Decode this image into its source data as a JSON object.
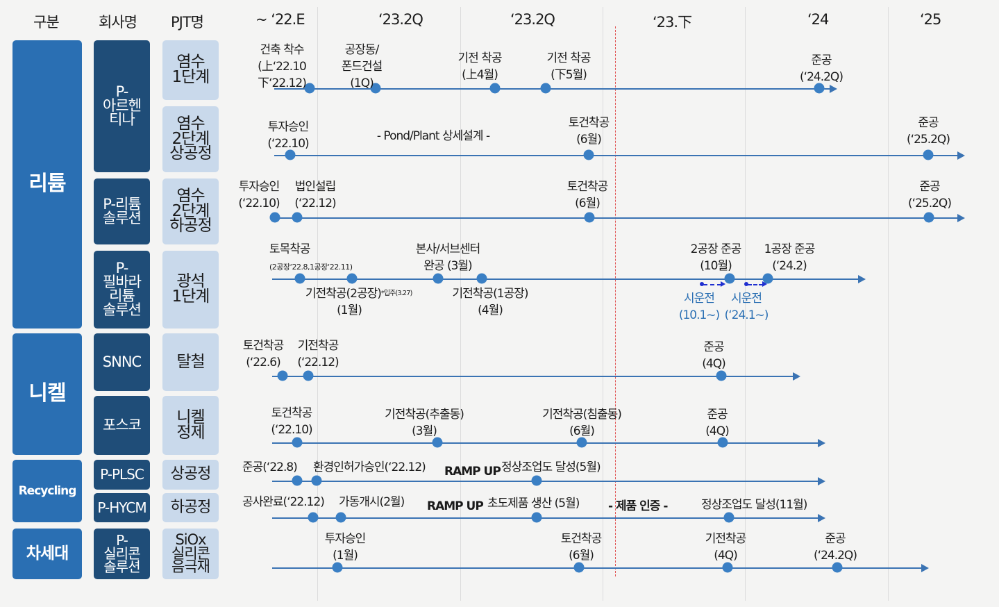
{
  "headers": {
    "category": "구분",
    "company": "회사명",
    "project": "PJT명",
    "t1": "~ ‘22.E",
    "t2": "‘23.2Q",
    "t3": "‘23.2Q",
    "t4": "‘23.下",
    "t5": "‘24",
    "t6": "‘25"
  },
  "categories": {
    "lithium": "리튬",
    "nickel": "니켈",
    "recycling": "Recycling",
    "nextgen": "차세대"
  },
  "companies": {
    "arg": "P-\n아르헨\n티나",
    "ls": "P-리튬\n솔루션",
    "pilbara": "P-\n필바라\n리튬\n솔루션",
    "snnc": "SNNC",
    "posco": "포스코",
    "plsc": "P-PLSC",
    "hycm": "P-HYCM",
    "silicon": "P-\n실리콘\n솔루션"
  },
  "projects": {
    "brine1": "염수\n1단계",
    "brine2u": "염수\n2단계\n상공정",
    "brine2d": "염수\n2단계\n하공정",
    "ore": "광석\n1단계",
    "ferro": "탈철",
    "nirefine": "니켈\n정제",
    "upper": "상공정",
    "lower": "하공정",
    "siox": "SiOx\n실리콘\n음극재"
  },
  "r1": {
    "m1": "건축 착수\n(上‘22.10\n下‘22.12)",
    "m2": "공장동/\n폰드건설\n(1Q)",
    "m3": "기전 착공\n(上4월)",
    "m4": "기전 착공\n(下5월)",
    "m5": "준공\n(‘24.2Q)"
  },
  "r2": {
    "m1": "투자승인\n(‘22.10)",
    "mid": "- Pond/Plant 상세설계 -",
    "m2": "토건착공\n(6월)",
    "m3": "준공\n(‘25.2Q)"
  },
  "r3": {
    "m1": "투자승인\n(‘22.10)",
    "m2": "법인설립\n(‘22.12)",
    "m3": "토건착공\n(6월)",
    "m4": "준공\n(‘25.2Q)"
  },
  "r4": {
    "m1": "토목착공",
    "m1s": "(2공장‘22.8,1공장‘22.11)",
    "m2": "본사/서브센터\n완공 (3월)",
    "m3": "2공장 준공\n(10월)",
    "m4": "1공장 준공\n(‘24.2)",
    "b1": "기전착공(2공장)",
    "b1sup": "*입주(3.27)",
    "b1b": "(1월)",
    "b2": "기전착공(1공장)\n(4월)",
    "t1": "시운전\n(10.1~)",
    "t2": "시운전\n(‘24.1~)"
  },
  "r5": {
    "m1": "토건착공\n(‘22.6)",
    "m2": "기전착공\n(‘22.12)",
    "m3": "준공\n(4Q)"
  },
  "r6": {
    "m1": "토건착공\n(‘22.10)",
    "m2": "기전착공(추출동)\n(3월)",
    "m3": "기전착공(침출동)\n(6월)",
    "m4": "준공\n(4Q)"
  },
  "r7": {
    "m1": "준공(‘22.8)",
    "m2": "환경인허가승인(‘22.12)",
    "ramp": "RAMP UP",
    "m3": "정상조업도 달성(5월)"
  },
  "r8": {
    "m1": "공사완료(‘22.12)",
    "m2": "가동개시(2월)",
    "ramp": "RAMP UP",
    "m3": "초도제품 생산 (5월)",
    "cert": "- 제품 인증 -",
    "m4": "정상조업도 달성(11월)"
  },
  "r9": {
    "m1": "투자승인\n(1월)",
    "m2": "토건착공\n(6월)",
    "m3": "기전착공\n(4Q)",
    "m4": "준공\n(‘24.2Q)"
  },
  "colors": {
    "category": "#2a6fb3",
    "company": "#1f4d78",
    "project": "#c9d9eb",
    "timeline": "#3a73b3",
    "now": "#e05050",
    "trial": "#1f2fd0"
  }
}
